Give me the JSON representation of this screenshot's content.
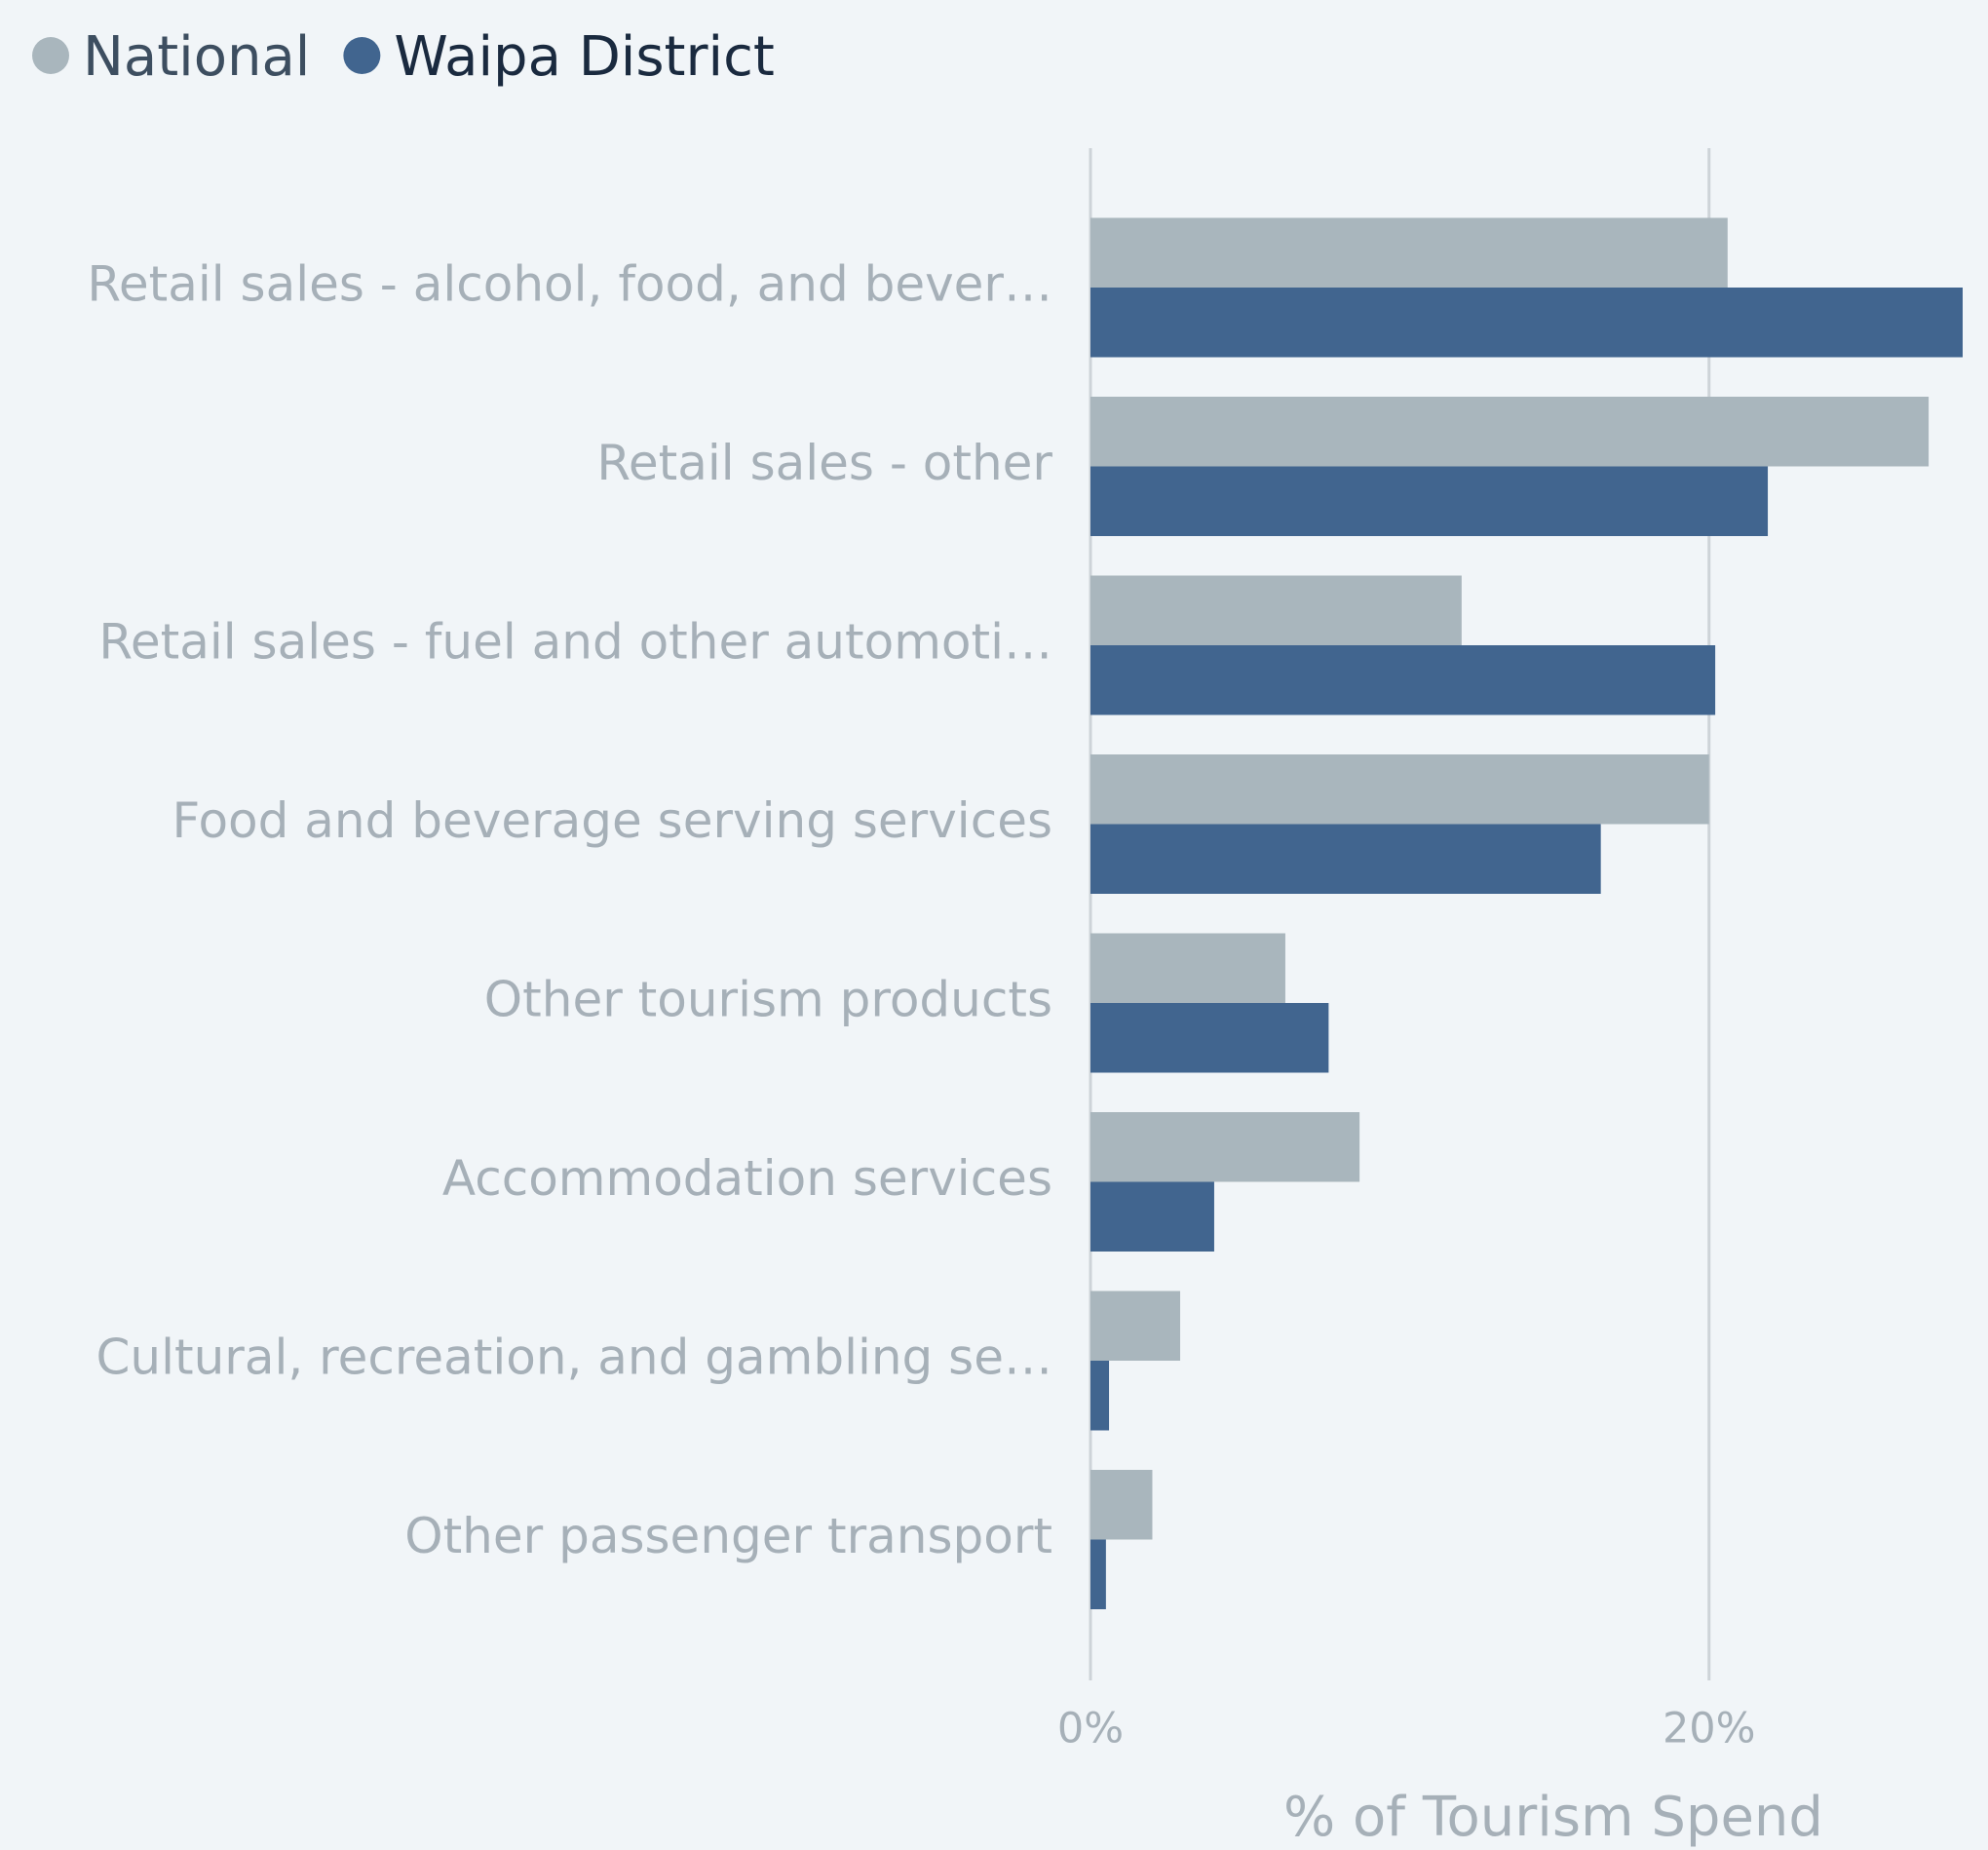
{
  "chart_data": {
    "type": "bar",
    "orientation": "horizontal",
    "categories": [
      "Retail sales - alcohol, food, and bever…",
      "Retail sales - other",
      "Retail sales - fuel and other automoti…",
      "Food and beverage serving services",
      "Other tourism products",
      "Accommodation services",
      "Cultural, recreation, and gambling se…",
      "Other passenger transport"
    ],
    "series": [
      {
        "name": "National",
        "color": "#a9b6bd",
        "values": [
          20.6,
          27.1,
          12.0,
          20.0,
          6.3,
          8.7,
          2.9,
          2.0
        ]
      },
      {
        "name": "Waipa District",
        "color": "#41658f",
        "values": [
          28.2,
          21.9,
          20.2,
          16.5,
          7.7,
          4.0,
          0.6,
          0.5
        ]
      }
    ],
    "xlabel": "% of Tourism Spend",
    "xlim": [
      0,
      28.2
    ],
    "xticks": [
      {
        "value": 0,
        "label": "0%"
      },
      {
        "value": 20,
        "label": "20%"
      }
    ],
    "grid": true,
    "legend": "top-left"
  }
}
